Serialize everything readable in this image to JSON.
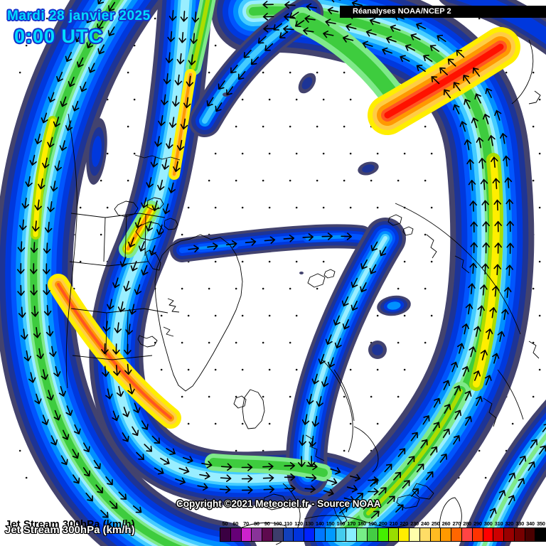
{
  "header": {
    "date": "Mardi 28 janvier 2025",
    "time": "0:00 UTC",
    "reanalysis_label": "Réanalyses NOAA/NCEP 2"
  },
  "map": {
    "copyright": "Copyright ©2021 Meteociel.fr - Source NOAA"
  },
  "footer": {
    "param_label": "Jet Stream 300hPa (km/h)",
    "param_label_outline": "Jet Stream 300hPa (km/h)"
  },
  "legend": {
    "unit": "km/h",
    "values": [
      "50",
      "60",
      "70",
      "80",
      "90",
      "100",
      "110",
      "120",
      "130",
      "140",
      "150",
      "160",
      "170",
      "180",
      "190",
      "200",
      "210",
      "220",
      "230",
      "240",
      "250",
      "260",
      "270",
      "280",
      "290",
      "300",
      "310",
      "320",
      "330",
      "340",
      "350"
    ],
    "colors": [
      "#3a0042",
      "#660077",
      "#cc22cc",
      "#883399",
      "#5e0a4e",
      "#3d3d6b",
      "#1240bb",
      "#0033dd",
      "#0022ff",
      "#0077ff",
      "#0099ff",
      "#44ccee",
      "#88eeff",
      "#77ee88",
      "#44cc44",
      "#44ee00",
      "#99dd00",
      "#ffee00",
      "#ffffaa",
      "#ffdd66",
      "#ffbb22",
      "#ff9900",
      "#ff6600",
      "#ff4444",
      "#ff3300",
      "#ff0000",
      "#cc0000",
      "#990000",
      "#770000",
      "#4a0000",
      "#000000"
    ],
    "text_color": "#000000"
  },
  "map_colors": {
    "background": "#ffffff",
    "coastline": "#000000",
    "arrow": "#000000",
    "title_fill": "#00dcff",
    "title_outline": "#1433cc",
    "source_bar_bg": "#000000",
    "source_bar_text": "#ffffff",
    "jet_levels": {
      "sl": "#43436e",
      "nv": "#1d3496",
      "b2": "#0038dd",
      "b3": "#0055ff",
      "az": "#0090ff",
      "cy": "#44ccff",
      "lc": "#99eeff",
      "pg": "#7fe98a",
      "gr": "#3ecc3e",
      "yg": "#aadd00",
      "ye": "#ffee00",
      "py": "#ffffaa",
      "oy": "#ffcc44",
      "og": "#ff9900",
      "o2": "#ff5522",
      "rd": "#ff1100"
    }
  }
}
